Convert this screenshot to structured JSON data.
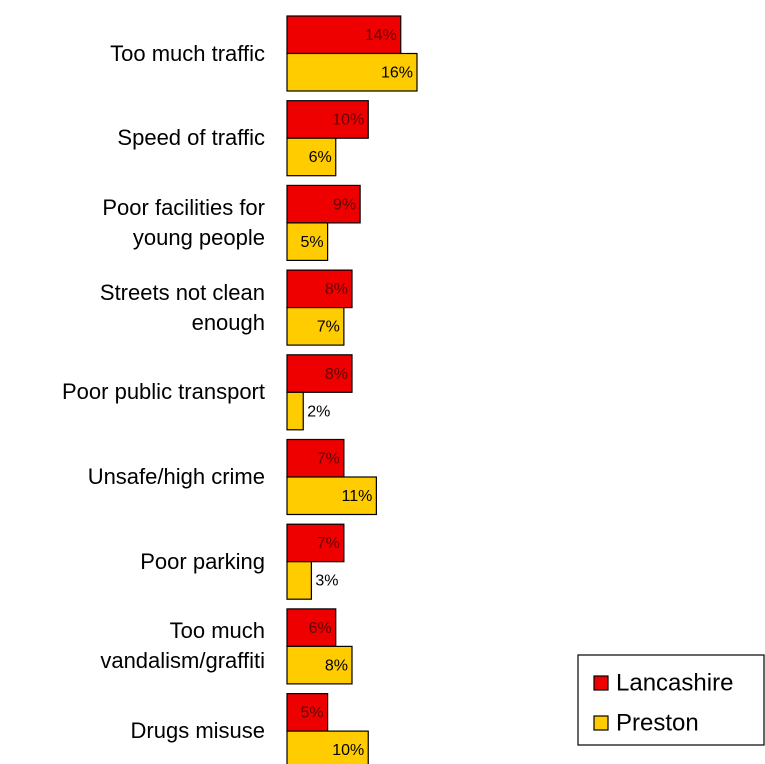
{
  "chart_data": {
    "type": "bar",
    "orientation": "horizontal",
    "categories": [
      "Too much traffic",
      "Speed of traffic",
      "Poor facilities for\nyoung people",
      "Streets not clean\nenough",
      "Poor public transport",
      "Unsafe/high crime",
      "Poor parking",
      "Too much\nvandalism/graffiti",
      "Drugs misuse"
    ],
    "series": [
      {
        "name": "Lancashire",
        "color": "#ee0000",
        "label_color": "#660000",
        "values": [
          14,
          10,
          9,
          8,
          8,
          7,
          7,
          6,
          5
        ],
        "value_labels": [
          "14%",
          "10%",
          "9%",
          "8%",
          "8%",
          "7%",
          "7%",
          "6%",
          "5%"
        ]
      },
      {
        "name": "Preston",
        "color": "#ffcc00",
        "label_color": "#000000",
        "values": [
          16,
          6,
          5,
          7,
          2,
          11,
          3,
          8,
          10
        ],
        "value_labels": [
          "16%",
          "6%",
          "5%",
          "7%",
          "2%",
          "11%",
          "3%",
          "8%",
          "10%"
        ]
      }
    ],
    "xlim": [
      0,
      16
    ],
    "legend": "lower right"
  }
}
